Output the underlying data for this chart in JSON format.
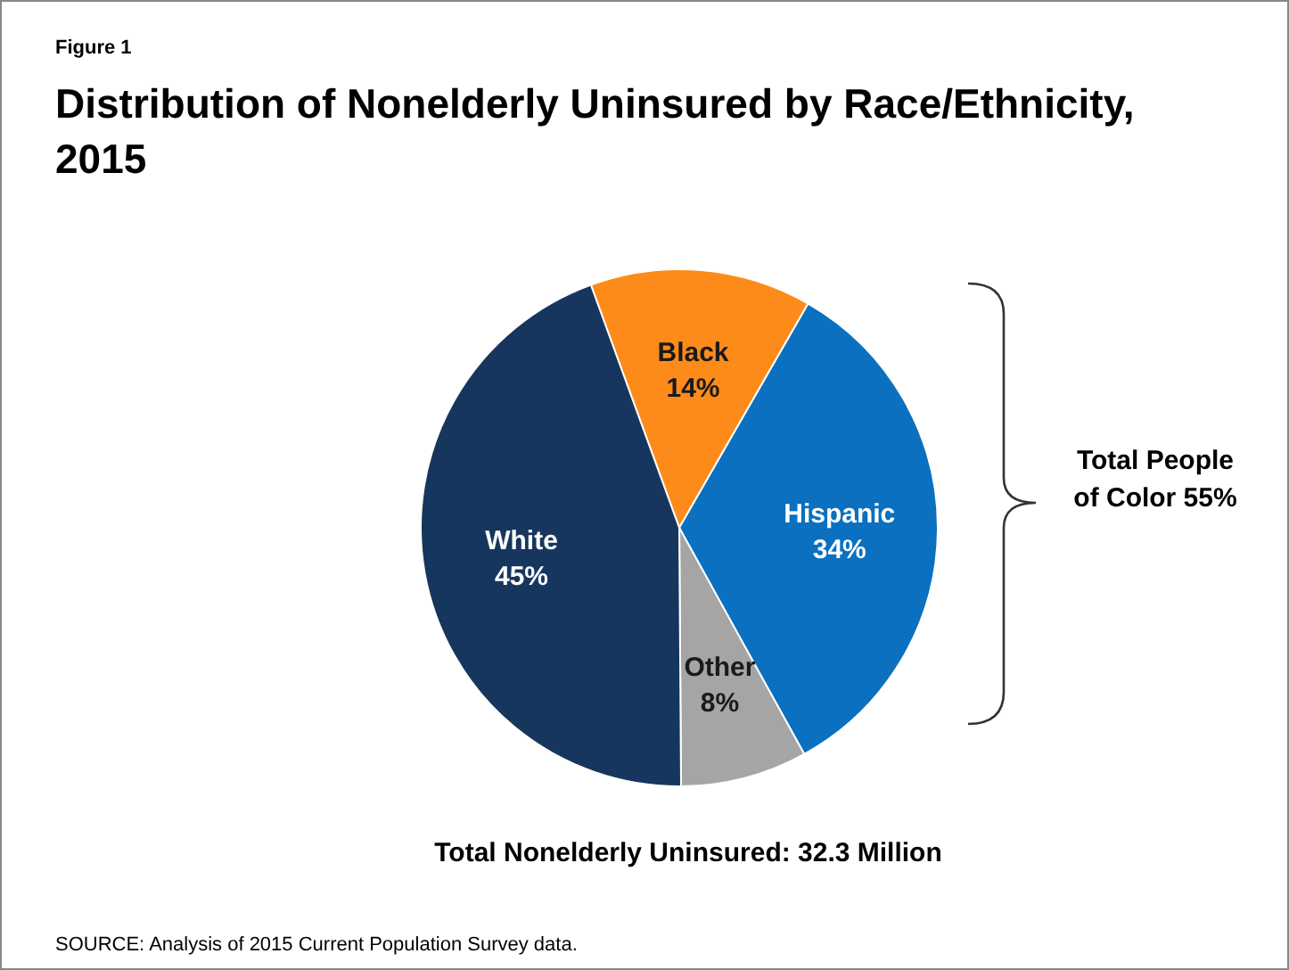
{
  "chart_data": {
    "type": "pie",
    "title": "Distribution of Nonelderly Uninsured by Race/Ethnicity, 2015",
    "categories": [
      "Black",
      "Hispanic",
      "Other",
      "White"
    ],
    "values": [
      14,
      34,
      8,
      45
    ],
    "value_labels": [
      "14%",
      "34%",
      "8%",
      "45%"
    ],
    "colors": [
      "#fd8b1a",
      "#0a70bf",
      "#a5a5a5",
      "#17365d"
    ],
    "annotations": [
      "Figure 1",
      "Total People of Color 55%",
      "Total Nonelderly Uninsured: 32.3 Million",
      "SOURCE: Analysis of 2015 Current Population Survey data."
    ]
  }
}
